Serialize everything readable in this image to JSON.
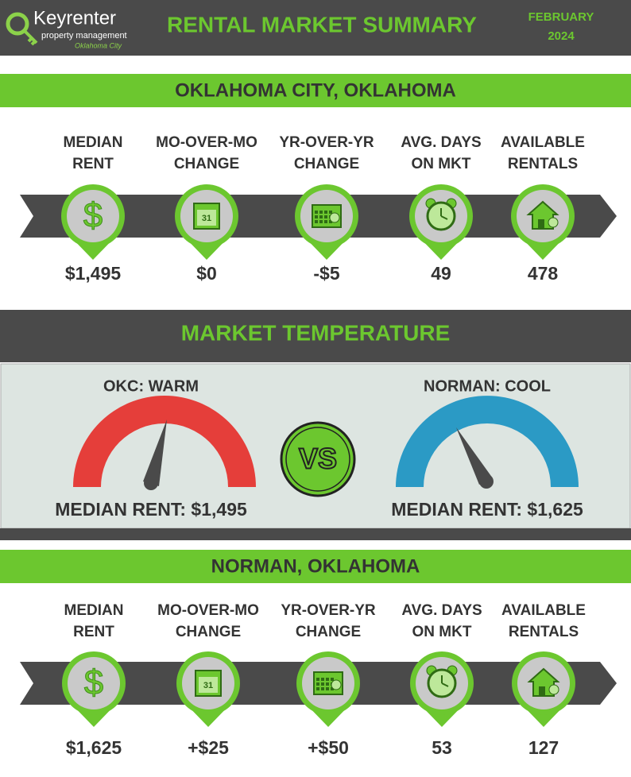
{
  "header": {
    "logo": {
      "brand": "Keyrenter",
      "tagline": "property management",
      "city": "Oklahoma City"
    },
    "title": "RENTAL MARKET SUMMARY",
    "month": "FEBRUARY",
    "year": "2024"
  },
  "sections": [
    {
      "title": "OKLAHOMA CITY, OKLAHOMA",
      "metrics": [
        {
          "label": [
            "MEDIAN",
            "RENT"
          ],
          "value": "$1,495"
        },
        {
          "label": [
            "MO-OVER-MO",
            "CHANGE"
          ],
          "value": "$0"
        },
        {
          "label": [
            "YR-OVER-YR",
            "CHANGE"
          ],
          "value": "-$5"
        },
        {
          "label": [
            "AVG. DAYS",
            "ON MKT"
          ],
          "value": "49"
        },
        {
          "label": [
            "AVAILABLE",
            "RENTALS"
          ],
          "value": "478"
        }
      ]
    },
    {
      "title": "NORMAN, OKLAHOMA",
      "metrics": [
        {
          "label": [
            "MEDIAN",
            "RENT"
          ],
          "value": "$1,625"
        },
        {
          "label": [
            "MO-OVER-MO",
            "CHANGE"
          ],
          "value": "+$25"
        },
        {
          "label": [
            "YR-OVER-YR",
            "CHANGE"
          ],
          "value": "+$50"
        },
        {
          "label": [
            "AVG. DAYS",
            "ON MKT"
          ],
          "value": "53"
        },
        {
          "label": [
            "AVAILABLE",
            "RENTALS"
          ],
          "value": "127"
        }
      ]
    }
  ],
  "temperature": {
    "title": "MARKET TEMPERATURE",
    "vs": "VS",
    "left": {
      "label": "OKC: WARM",
      "rent": "MEDIAN RENT: $1,495"
    },
    "right": {
      "label": "NORMAN: COOL",
      "rent": "MEDIAN RENT: $1,625"
    }
  }
}
